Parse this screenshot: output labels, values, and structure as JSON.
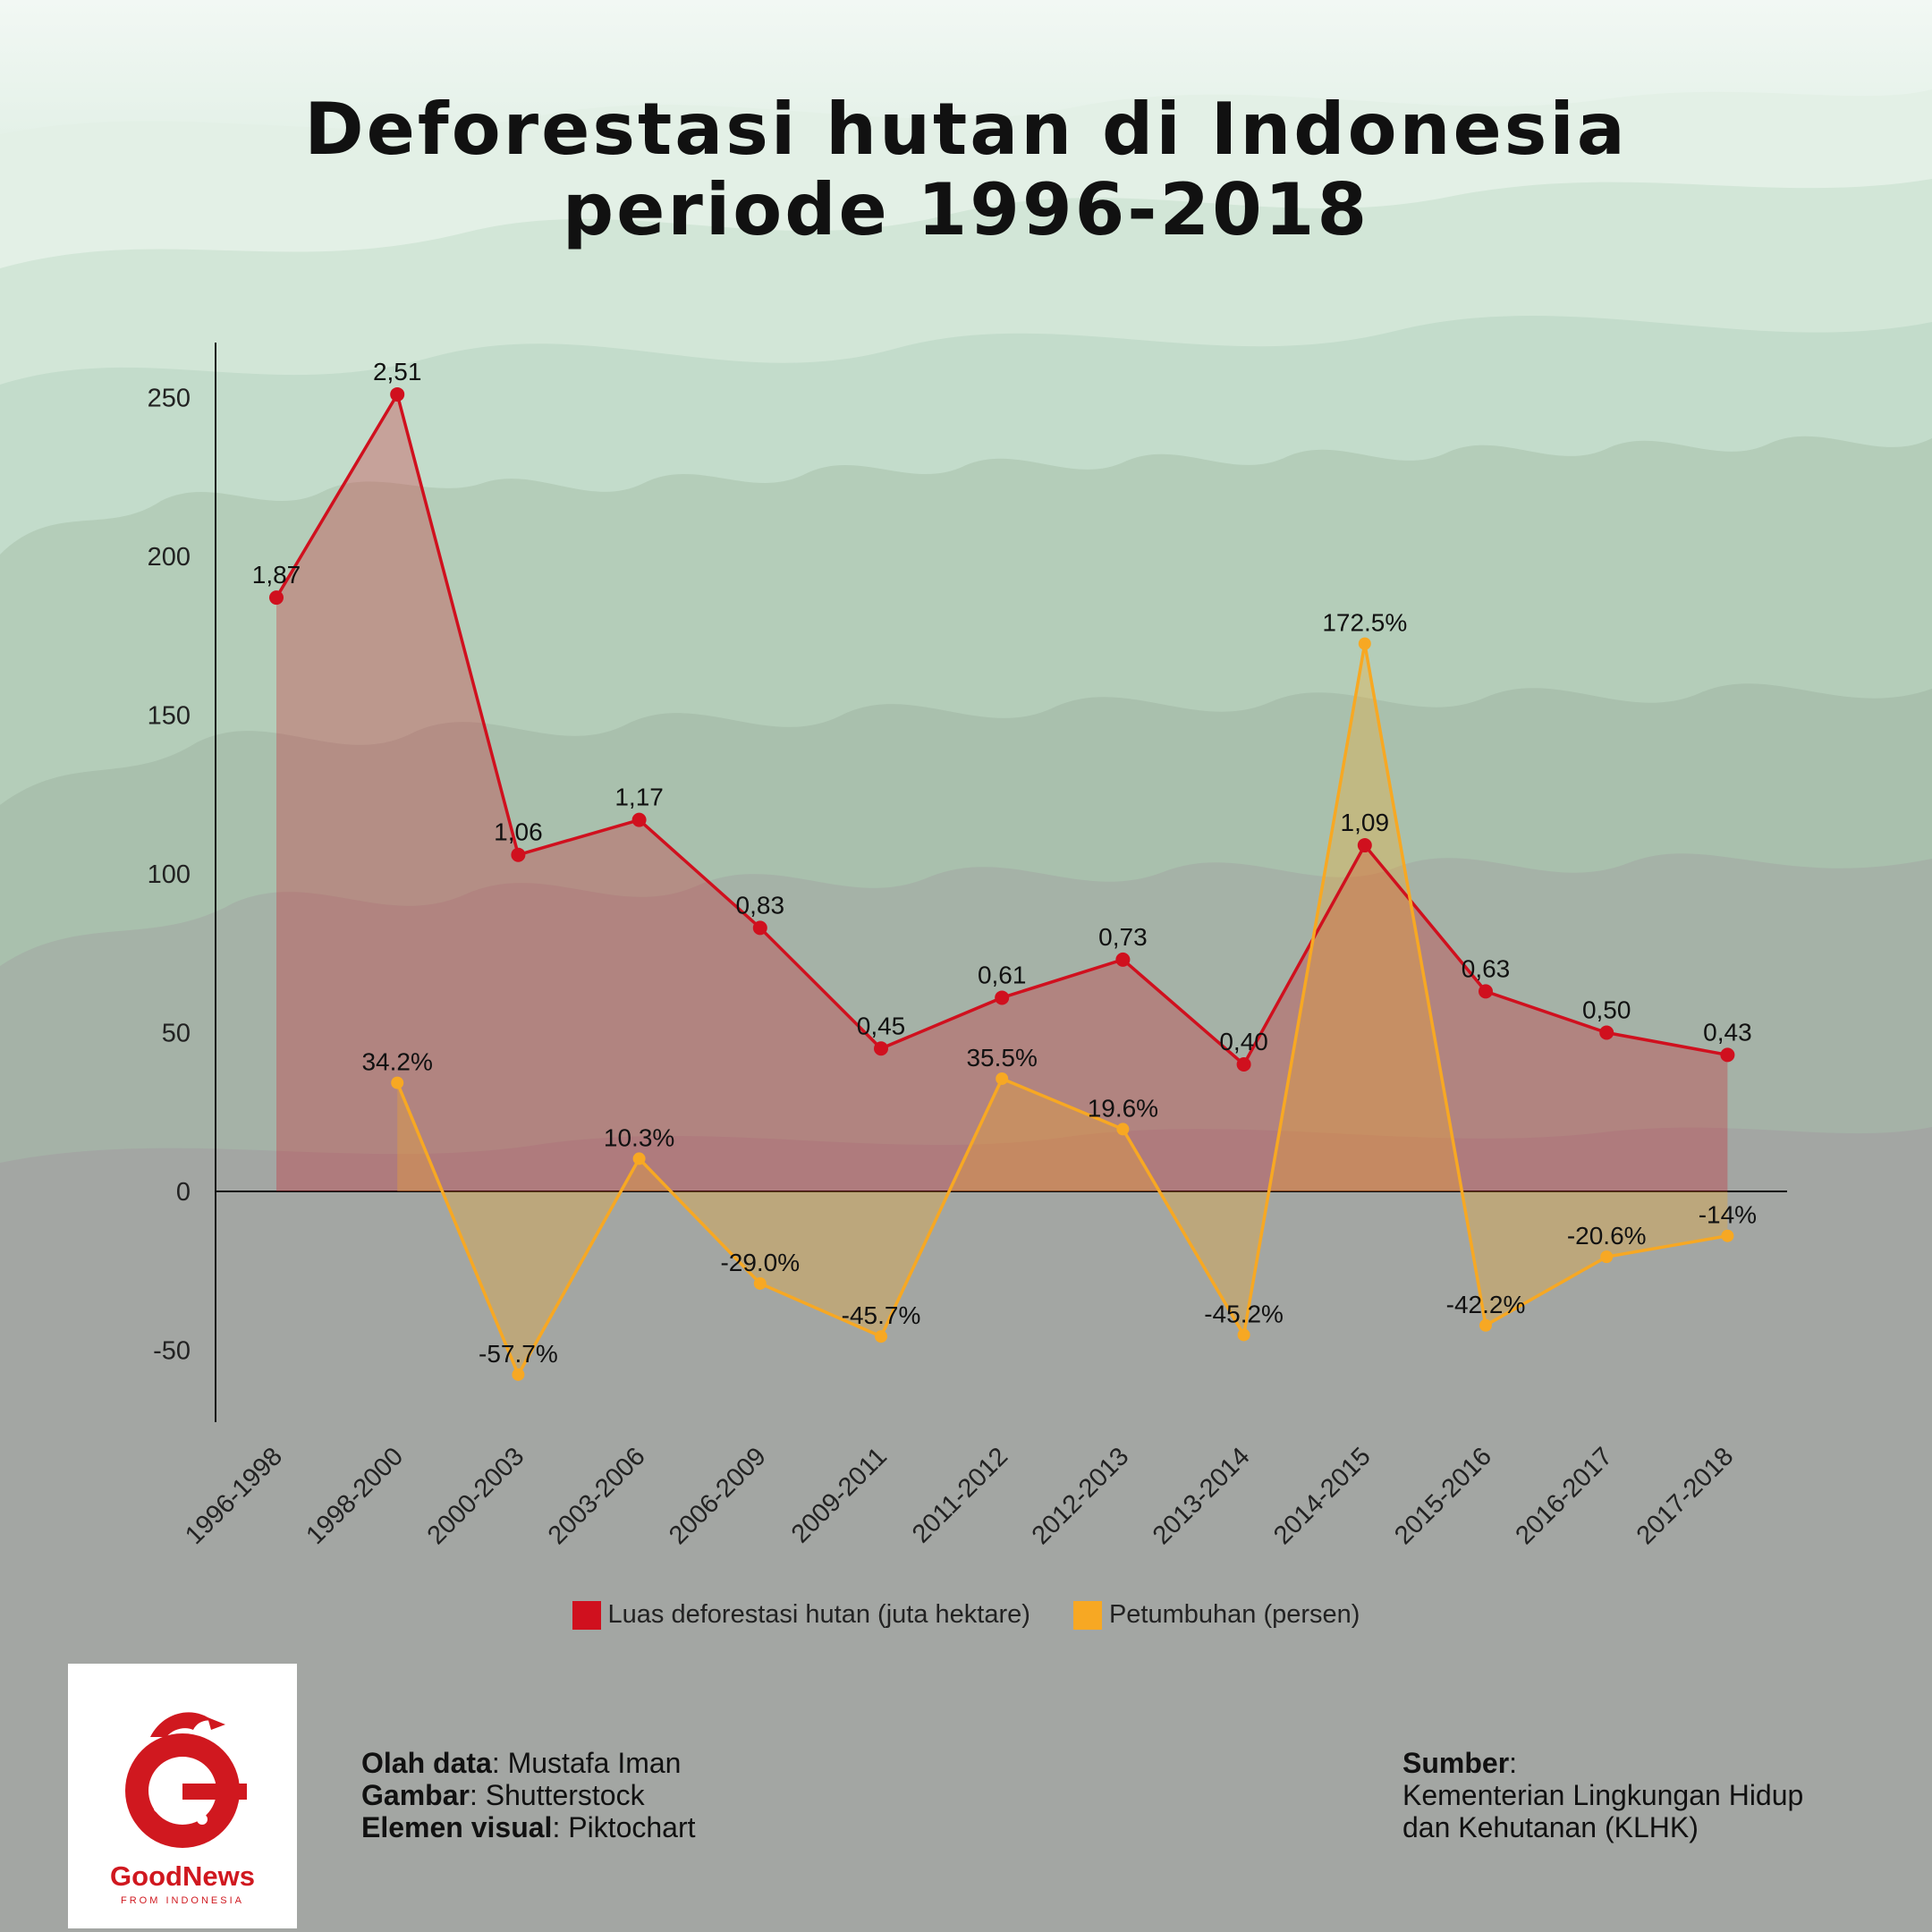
{
  "title_line1": "Deforestasi hutan di Indonesia",
  "title_line2": "periode 1996-2018",
  "chart_data": {
    "type": "line",
    "title": "Deforestasi hutan di Indonesia periode 1996-2018",
    "categories": [
      "1996-1998",
      "1998-2000",
      "2000-2003",
      "2003-2006",
      "2006-2009",
      "2009-2011",
      "2011-2012",
      "2012-2013",
      "2013-2014",
      "2014-2015",
      "2015-2016",
      "2016-2017",
      "2017-2018"
    ],
    "ylim": [
      -72,
      267
    ],
    "yticks": [
      250,
      200,
      150,
      100,
      50,
      0,
      -50
    ],
    "grid": false,
    "legend_position": "bottom",
    "series": [
      {
        "name": "Luas deforestasi hutan (juta hektare)",
        "color": "#d0101e",
        "values": [
          1.87,
          2.51,
          1.06,
          1.17,
          0.83,
          0.45,
          0.61,
          0.73,
          0.4,
          1.09,
          0.63,
          0.5,
          0.43
        ],
        "labels": [
          "1,87",
          "2,51",
          "1,06",
          "1,17",
          "0,83",
          "0,45",
          "0,61",
          "0,73",
          "0,40",
          "1,09",
          "0,63",
          "0,50",
          "0,43"
        ],
        "plot_scale": 100
      },
      {
        "name": "Petumbuhan (persen)",
        "color": "#f7a823",
        "values": [
          null,
          34.2,
          -57.7,
          10.3,
          -29.0,
          -45.7,
          35.5,
          19.6,
          -45.2,
          172.5,
          -42.2,
          -20.6,
          -14
        ],
        "labels": [
          "",
          "34.2%",
          "-57.7%",
          "10.3%",
          "-29.0%",
          "-45.7%",
          "35.5%",
          "19.6%",
          "-45.2%",
          "172.5%",
          "-42.2%",
          "-20.6%",
          "-14%"
        ],
        "plot_scale": 1
      }
    ]
  },
  "legend": {
    "item1": "Luas deforestasi hutan (juta hektare)",
    "item2": "Petumbuhan (persen)"
  },
  "logo": {
    "name": "GoodNews",
    "sub": "FROM INDONESIA"
  },
  "credits": {
    "data_label": "Olah data",
    "data_value": "Mustafa Iman",
    "image_label": "Gambar",
    "image_value": "Shutterstock",
    "visual_label": "Elemen visual",
    "visual_value": "Piktochart"
  },
  "source": {
    "label": "Sumber",
    "line1": "Kementerian Lingkungan Hidup",
    "line2": "dan Kehutanan (KLHK)"
  },
  "colors": {
    "red": "#d0101e",
    "orange": "#f7a823",
    "logo_red": "#d0181f"
  }
}
